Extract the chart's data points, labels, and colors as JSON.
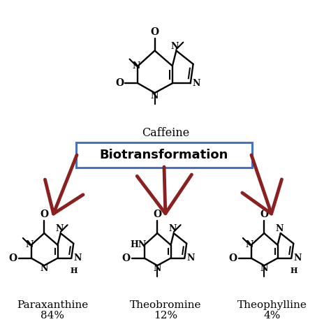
{
  "bg_color": "#ffffff",
  "arrow_color": "#8B2020",
  "box_edge_color": "#4472C4",
  "box_face_color": "#ffffff",
  "biotransformation_text": "Biotransformation",
  "caffeine_label": "Caffeine",
  "products": [
    {
      "name": "Paraxanthine",
      "percent": "84%"
    },
    {
      "name": "Theobromine",
      "percent": "12%"
    },
    {
      "name": "Theophylline",
      "percent": "4%"
    }
  ],
  "bond_lw": 1.7,
  "struct_fs": 9.0,
  "label_fs": 11.5,
  "bio_fs": 13.0,
  "pct_fs": 11.5
}
